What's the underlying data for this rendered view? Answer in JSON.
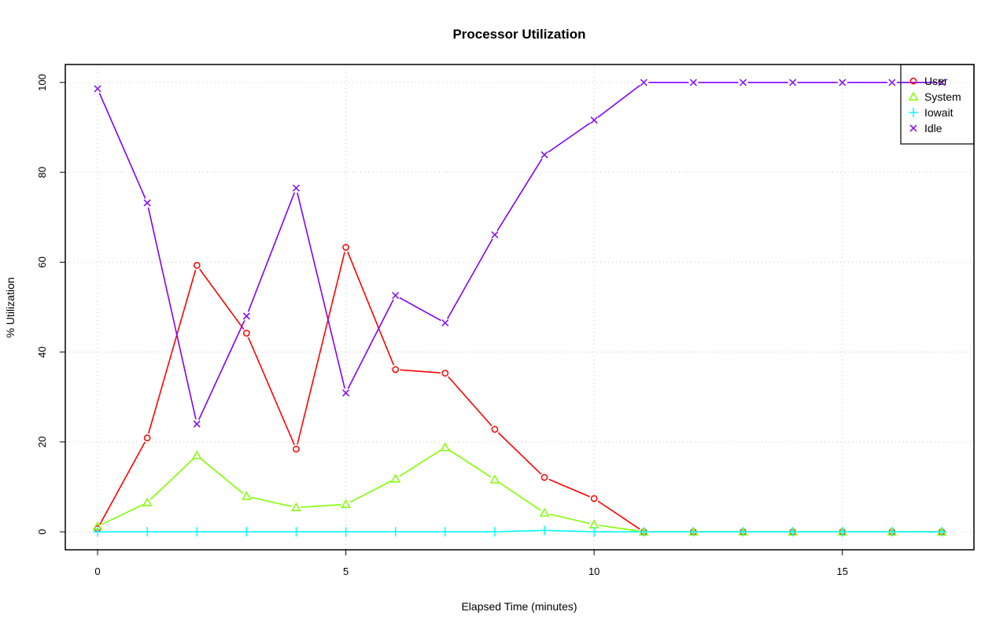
{
  "chart_data": {
    "type": "line",
    "title": "Processor Utilization",
    "xlabel": "Elapsed Time (minutes)",
    "ylabel": "% Utilization",
    "xlim": [
      -0.65,
      17.65
    ],
    "ylim": [
      -4,
      104
    ],
    "xticks": [
      0,
      5,
      10,
      15
    ],
    "yticks": [
      0,
      20,
      40,
      60,
      80,
      100
    ],
    "grid": true,
    "legend_position": "top-right",
    "x": [
      0,
      1,
      2,
      3,
      4,
      5,
      6,
      7,
      8,
      9,
      10,
      11,
      12,
      13,
      14,
      15,
      16,
      17
    ],
    "series": [
      {
        "name": "User",
        "color": "#ff0000",
        "marker": "circle",
        "values": [
          0.7,
          20.9,
          59.3,
          44.2,
          18.4,
          63.3,
          36.1,
          35.3,
          22.8,
          12.1,
          7.4,
          0,
          0,
          0,
          0,
          0,
          0,
          0
        ]
      },
      {
        "name": "System",
        "color": "#80ff00",
        "marker": "triangle",
        "values": [
          1.2,
          6.5,
          17.0,
          7.9,
          5.4,
          6.1,
          11.8,
          18.8,
          11.6,
          4.2,
          1.6,
          0,
          0,
          0,
          0,
          0,
          0,
          0
        ]
      },
      {
        "name": "Iowait",
        "color": "#00ffff",
        "marker": "plus",
        "values": [
          0,
          0,
          0,
          0,
          0,
          0,
          0,
          0,
          0,
          0.3,
          0,
          0,
          0,
          0,
          0,
          0,
          0,
          0
        ]
      },
      {
        "name": "Idle",
        "color": "#8000ff",
        "marker": "cross",
        "values": [
          98.6,
          73.2,
          24.0,
          48.0,
          76.5,
          30.9,
          52.6,
          46.5,
          66.1,
          83.9,
          91.6,
          100,
          100,
          100,
          100,
          100,
          100,
          100
        ]
      }
    ]
  }
}
